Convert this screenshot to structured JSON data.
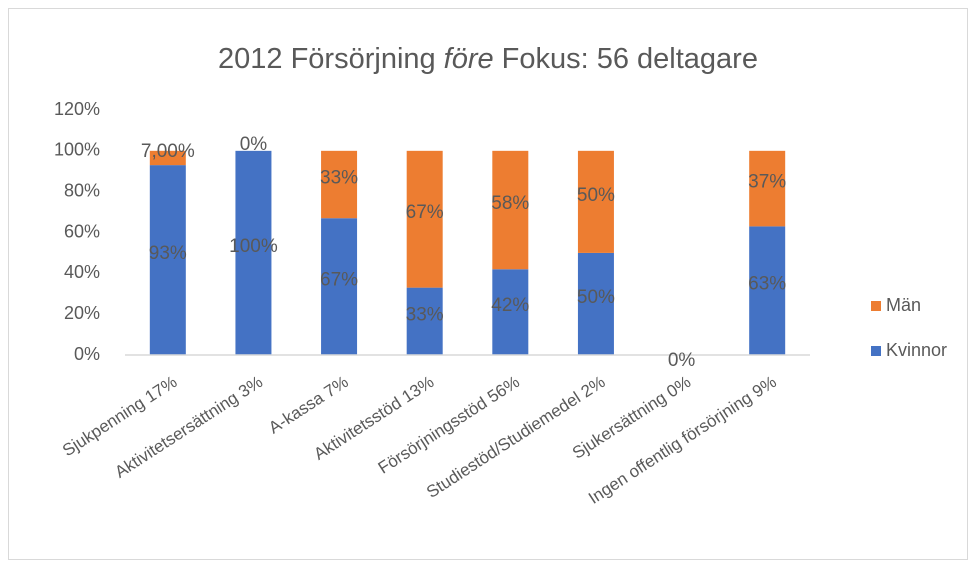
{
  "chart_data": {
    "type": "stacked_bar",
    "title": [
      "2012 Försörjning",
      "före",
      "Fokus: 56 deltagare"
    ],
    "title_italic_part": 1,
    "categories": [
      "Sjukpenning 17%",
      "Aktivitetsersättning 3%",
      "A-kassa 7%",
      "Aktivitetsstöd 13%",
      "Försörjningsstöd 56%",
      "Studiestöd/Studiemedel 2%",
      "Sjukersättning 0%",
      "Ingen offentlig försörjning 9%"
    ],
    "series": [
      {
        "name": "Kvinnor",
        "color": "#4472c4",
        "values": [
          93,
          100,
          67,
          33,
          42,
          50,
          0,
          63
        ],
        "value_labels": [
          "93%",
          "100%",
          "67%",
          "33%",
          "42%",
          "50%",
          "0%",
          "63%"
        ]
      },
      {
        "name": "Män",
        "color": "#ed7d31",
        "values": [
          7,
          0,
          33,
          67,
          58,
          50,
          0,
          37
        ],
        "value_labels": [
          "7,00%",
          "0%",
          "33%",
          "67%",
          "58%",
          "50%",
          null,
          "37%"
        ]
      }
    ],
    "ylim": [
      0,
      120
    ],
    "yticks": [
      {
        "value": 0,
        "label": "0%"
      },
      {
        "value": 20,
        "label": "20%"
      },
      {
        "value": 40,
        "label": "40%"
      },
      {
        "value": 60,
        "label": "60%"
      },
      {
        "value": 80,
        "label": "80%"
      },
      {
        "value": 100,
        "label": "100%"
      },
      {
        "value": 120,
        "label": "120%"
      }
    ],
    "grid": false,
    "legend": "right"
  }
}
